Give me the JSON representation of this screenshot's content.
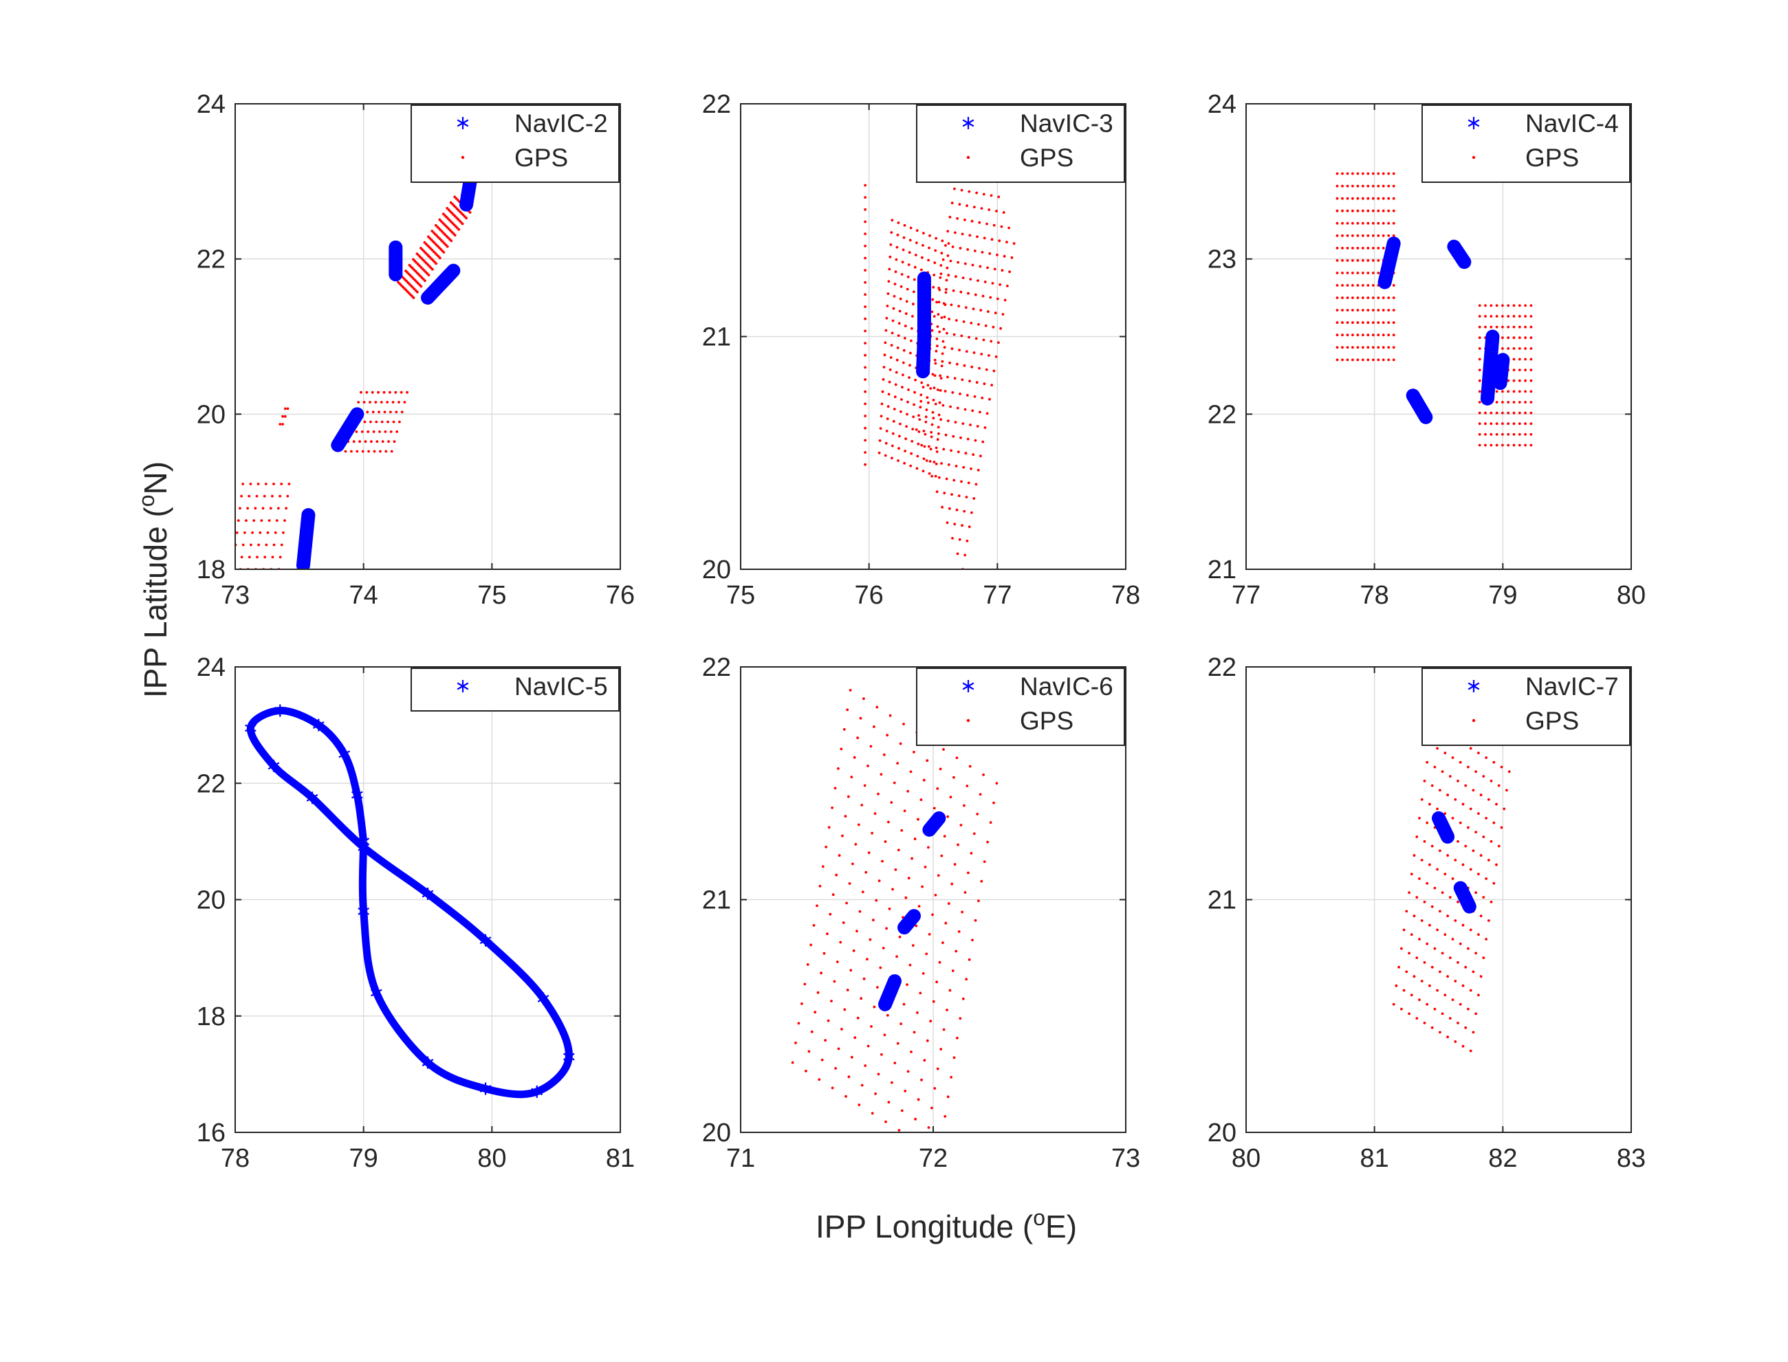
{
  "figure": {
    "xlabel": "IPP Longitude (",
    "xlabel_sup": "o",
    "xlabel_tail": "E)",
    "ylabel": "IPP Latitude (",
    "ylabel_sup": "o",
    "ylabel_tail": "N)"
  },
  "colors": {
    "navic": "#0000ff",
    "gps": "#ff0000",
    "axis": "#262626",
    "grid": "#dcdcdc"
  },
  "chart_data": [
    {
      "type": "scatter",
      "xlim": [
        73,
        76
      ],
      "ylim": [
        18,
        24
      ],
      "xticks": [
        "73",
        "74",
        "75",
        "76"
      ],
      "yticks": [
        "18",
        "20",
        "22",
        "24"
      ],
      "grid": true,
      "legend_position": "top-right",
      "legend": [
        "NavIC-2",
        "GPS"
      ],
      "navic_segments": [
        [
          [
            73.53,
            18.05
          ],
          [
            73.57,
            18.7
          ]
        ],
        [
          [
            73.8,
            19.6
          ],
          [
            73.95,
            20.0
          ]
        ],
        [
          [
            74.25,
            21.8
          ],
          [
            74.25,
            22.15
          ]
        ],
        [
          [
            74.5,
            21.5
          ],
          [
            74.7,
            21.85
          ]
        ],
        [
          [
            74.8,
            22.7
          ],
          [
            74.83,
            23.0
          ]
        ]
      ],
      "gps_grids": [
        {
          "center": [
            74.55,
            22.15
          ],
          "u": [
            0.22,
            0.55
          ],
          "v": [
            0.06,
            -0.1
          ],
          "nu": 16,
          "nv": 11
        },
        {
          "center": [
            74.1,
            19.9
          ],
          "u": [
            0.18,
            0.0
          ],
          "v": [
            0.06,
            0.38
          ],
          "nu": 9,
          "nv": 7
        },
        {
          "center": [
            73.2,
            18.55
          ],
          "u": [
            0.18,
            0.0
          ],
          "v": [
            0.04,
            0.55
          ],
          "nu": 7,
          "nv": 8
        },
        {
          "center": [
            73.38,
            19.97
          ],
          "u": [
            0.01,
            0.0
          ],
          "v": [
            0.02,
            0.1
          ],
          "nu": 2,
          "nv": 3
        }
      ]
    },
    {
      "type": "scatter",
      "xlim": [
        75,
        78
      ],
      "ylim": [
        20,
        22
      ],
      "xticks": [
        "75",
        "76",
        "77",
        "78"
      ],
      "yticks": [
        "20",
        "21",
        "22"
      ],
      "grid": true,
      "legend_position": "top-right",
      "legend": [
        "NavIC-3",
        "GPS"
      ],
      "navic_segments": [
        [
          [
            76.43,
            21.0
          ],
          [
            76.43,
            21.25
          ]
        ],
        [
          [
            76.42,
            20.85
          ],
          [
            76.43,
            21.0
          ]
        ]
      ],
      "gps_grids": [
        {
          "center": [
            75.97,
            21.05
          ],
          "u": [
            0.0,
            0.0
          ],
          "v": [
            0.0,
            0.6
          ],
          "nu": 1,
          "nv": 24
        },
        {
          "center": [
            76.35,
            20.95
          ],
          "u": [
            0.22,
            -0.05
          ],
          "v": [
            0.05,
            0.5
          ],
          "nu": 10,
          "nv": 20
        },
        {
          "center": [
            76.75,
            21.0
          ],
          "u": [
            0.18,
            -0.3
          ],
          "v": [
            0.2,
            0.7
          ],
          "nu": 10,
          "nv": 24
        }
      ]
    },
    {
      "type": "scatter",
      "xlim": [
        77,
        80
      ],
      "ylim": [
        21,
        24
      ],
      "xticks": [
        "77",
        "78",
        "79",
        "80"
      ],
      "yticks": [
        "21",
        "22",
        "23",
        "24"
      ],
      "grid": true,
      "legend_position": "top-right",
      "legend": [
        "NavIC-4",
        "GPS"
      ],
      "navic_segments": [
        [
          [
            78.08,
            22.85
          ],
          [
            78.15,
            23.1
          ]
        ],
        [
          [
            78.62,
            23.08
          ],
          [
            78.7,
            22.98
          ]
        ],
        [
          [
            78.3,
            22.12
          ],
          [
            78.4,
            21.98
          ]
        ],
        [
          [
            78.88,
            22.1
          ],
          [
            78.92,
            22.5
          ]
        ],
        [
          [
            78.98,
            22.2
          ],
          [
            79.0,
            22.35
          ]
        ]
      ],
      "gps_grids": [
        {
          "center": [
            77.93,
            22.95
          ],
          "u": [
            0.22,
            0.0
          ],
          "v": [
            0.0,
            0.6
          ],
          "nu": 12,
          "nv": 16
        },
        {
          "center": [
            79.02,
            22.25
          ],
          "u": [
            0.2,
            0.0
          ],
          "v": [
            0.0,
            0.45
          ],
          "nu": 10,
          "nv": 14
        }
      ]
    },
    {
      "type": "scatter",
      "xlim": [
        78,
        81
      ],
      "ylim": [
        16,
        24
      ],
      "xticks": [
        "78",
        "79",
        "80",
        "81"
      ],
      "yticks": [
        "16",
        "18",
        "20",
        "22",
        "24"
      ],
      "grid": true,
      "legend_position": "top-right",
      "legend": [
        "NavIC-5"
      ],
      "navic_loop": [
        [
          79.0,
          21.0
        ],
        [
          78.95,
          21.8
        ],
        [
          78.85,
          22.5
        ],
        [
          78.65,
          23.0
        ],
        [
          78.35,
          23.25
        ],
        [
          78.12,
          22.95
        ],
        [
          78.3,
          22.3
        ],
        [
          78.6,
          21.75
        ],
        [
          79.0,
          20.9
        ],
        [
          79.5,
          20.1
        ],
        [
          79.95,
          19.3
        ],
        [
          80.4,
          18.3
        ],
        [
          80.6,
          17.3
        ],
        [
          80.35,
          16.7
        ],
        [
          79.95,
          16.75
        ],
        [
          79.5,
          17.2
        ],
        [
          79.1,
          18.4
        ],
        [
          79.0,
          19.8
        ],
        [
          79.0,
          21.0
        ]
      ],
      "gps_grids": []
    },
    {
      "type": "scatter",
      "xlim": [
        71,
        73
      ],
      "ylim": [
        20,
        22
      ],
      "xticks": [
        "71",
        "72",
        "73"
      ],
      "yticks": [
        "20",
        "21",
        "22"
      ],
      "grid": true,
      "legend_position": "top-right",
      "legend": [
        "NavIC-6",
        "GPS"
      ],
      "navic_segments": [
        [
          [
            71.75,
            20.55
          ],
          [
            71.8,
            20.65
          ]
        ],
        [
          [
            71.85,
            20.88
          ],
          [
            71.9,
            20.93
          ]
        ],
        [
          [
            71.98,
            21.3
          ],
          [
            72.03,
            21.35
          ]
        ]
      ],
      "gps_grids": [
        {
          "center": [
            71.8,
            20.9
          ],
          "u": [
            0.38,
            -0.2
          ],
          "v": [
            0.15,
            0.8
          ],
          "nu": 12,
          "nv": 20
        }
      ]
    },
    {
      "type": "scatter",
      "xlim": [
        80,
        83
      ],
      "ylim": [
        20,
        22
      ],
      "xticks": [
        "80",
        "81",
        "82",
        "83"
      ],
      "yticks": [
        "20",
        "21",
        "22"
      ],
      "grid": true,
      "legend_position": "top-right",
      "legend": [
        "NavIC-7",
        "GPS"
      ],
      "navic_segments": [
        [
          [
            81.5,
            21.35
          ],
          [
            81.57,
            21.27
          ]
        ],
        [
          [
            81.67,
            21.05
          ],
          [
            81.74,
            20.97
          ]
        ]
      ],
      "gps_grids": [
        {
          "center": [
            81.6,
            21.05
          ],
          "u": [
            0.3,
            -0.1
          ],
          "v": [
            0.15,
            0.6
          ],
          "nu": 11,
          "nv": 16
        }
      ]
    }
  ]
}
